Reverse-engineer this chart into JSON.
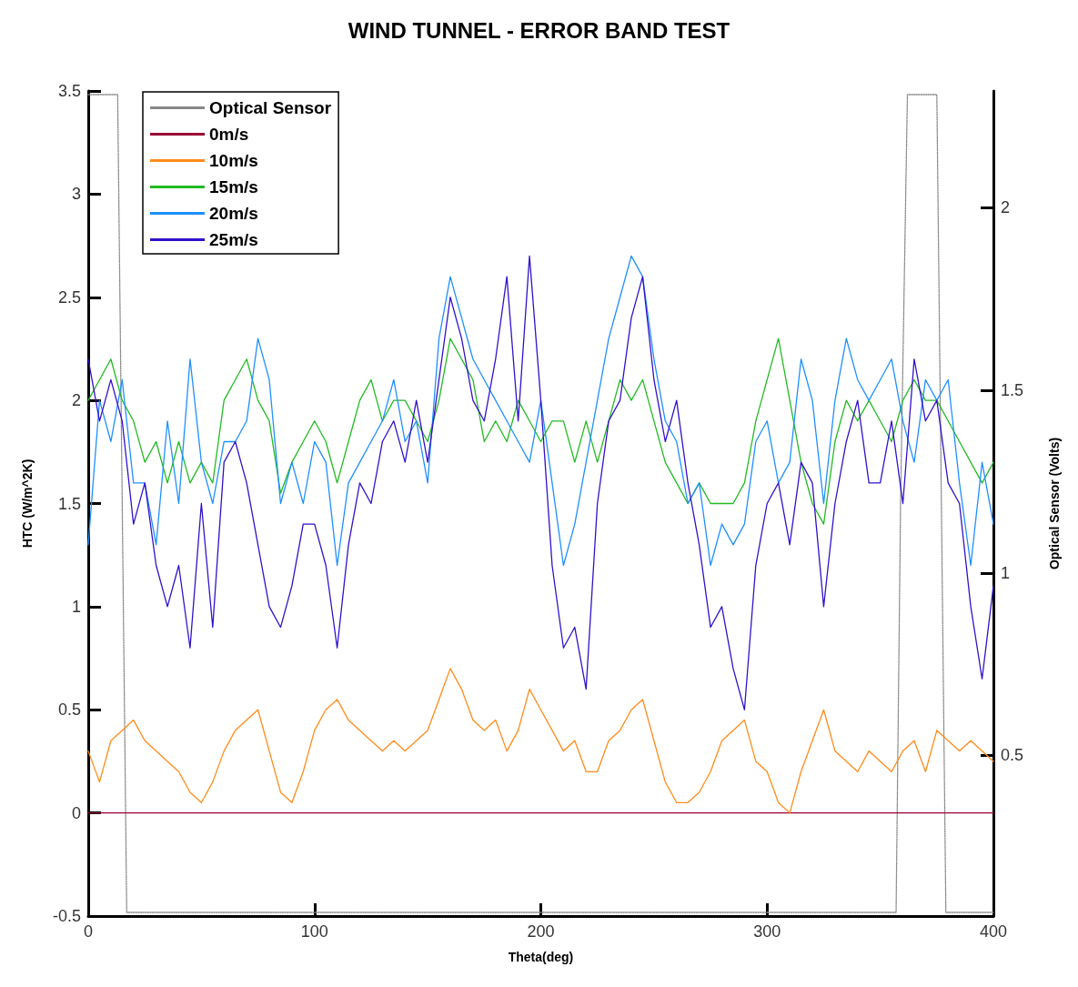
{
  "chart_data": {
    "type": "line",
    "title": "WIND TUNNEL - ERROR BAND TEST",
    "xlabel": "Theta(deg)",
    "ylabel": "HTC (W/m^2K)",
    "y2label": "Optical Sensor (Volts)",
    "xlim": [
      0,
      400
    ],
    "xticks": [
      0,
      100,
      200,
      300,
      400
    ],
    "ylim": [
      -0.5,
      3.5
    ],
    "yticks": [
      -0.5,
      0,
      0.5,
      1,
      1.5,
      2,
      2.5,
      3,
      3.5
    ],
    "y2lim": [
      0.06,
      2.32
    ],
    "y2ticks": [
      0.5,
      1,
      1.5,
      2
    ],
    "grid": false,
    "legend": "top left",
    "marker": "none",
    "line_style": "solid",
    "x": [
      0,
      5,
      10,
      15,
      20,
      25,
      30,
      35,
      40,
      45,
      50,
      55,
      60,
      65,
      70,
      75,
      80,
      85,
      90,
      95,
      100,
      105,
      110,
      115,
      120,
      125,
      130,
      135,
      140,
      145,
      150,
      155,
      160,
      165,
      170,
      175,
      180,
      185,
      190,
      195,
      200,
      205,
      210,
      215,
      220,
      225,
      230,
      235,
      240,
      245,
      250,
      255,
      260,
      265,
      270,
      275,
      280,
      285,
      290,
      295,
      300,
      305,
      310,
      315,
      320,
      325,
      330,
      335,
      340,
      345,
      350,
      355,
      360,
      365,
      370,
      375,
      380,
      385,
      390,
      395,
      400
    ],
    "series": [
      {
        "name": "Optical Sensor",
        "color": "#888888",
        "axis": "y2",
        "line_style": "dotted",
        "x": [
          0,
          13,
          15,
          17,
          357,
          359,
          362,
          375,
          377,
          379,
          400
        ],
        "values": [
          2.31,
          2.31,
          1.2,
          0.07,
          0.07,
          1.2,
          2.31,
          2.31,
          1.2,
          0.07,
          0.07
        ]
      },
      {
        "name": "0m/s",
        "color": "#990033",
        "x": [
          0,
          400
        ],
        "values": [
          0,
          0
        ]
      },
      {
        "name": "10m/s",
        "color": "#ff8c1a",
        "values": [
          0.3,
          0.15,
          0.35,
          0.4,
          0.45,
          0.35,
          0.3,
          0.25,
          0.2,
          0.1,
          0.05,
          0.15,
          0.3,
          0.4,
          0.45,
          0.5,
          0.3,
          0.1,
          0.05,
          0.2,
          0.4,
          0.5,
          0.55,
          0.45,
          0.4,
          0.35,
          0.3,
          0.35,
          0.3,
          0.35,
          0.4,
          0.55,
          0.7,
          0.6,
          0.45,
          0.4,
          0.45,
          0.3,
          0.4,
          0.6,
          0.5,
          0.4,
          0.3,
          0.35,
          0.2,
          0.2,
          0.35,
          0.4,
          0.5,
          0.55,
          0.35,
          0.15,
          0.05,
          0.05,
          0.1,
          0.2,
          0.35,
          0.4,
          0.45,
          0.25,
          0.2,
          0.05,
          0.0,
          0.2,
          0.35,
          0.5,
          0.3,
          0.25,
          0.2,
          0.3,
          0.25,
          0.2,
          0.3,
          0.35,
          0.2,
          0.4,
          0.35,
          0.3,
          0.35,
          0.3,
          0.25
        ]
      },
      {
        "name": "15m/s",
        "color": "#22bb22",
        "values": [
          2.0,
          2.1,
          2.2,
          2.0,
          1.9,
          1.7,
          1.8,
          1.6,
          1.8,
          1.6,
          1.7,
          1.6,
          2.0,
          2.1,
          2.2,
          2.0,
          1.9,
          1.55,
          1.7,
          1.8,
          1.9,
          1.8,
          1.6,
          1.8,
          2.0,
          2.1,
          1.9,
          2.0,
          2.0,
          1.9,
          1.8,
          2.0,
          2.3,
          2.2,
          2.1,
          1.8,
          1.9,
          1.8,
          2.0,
          1.9,
          1.8,
          1.9,
          1.9,
          1.7,
          1.9,
          1.7,
          1.9,
          2.1,
          2.0,
          2.1,
          1.9,
          1.7,
          1.6,
          1.5,
          1.6,
          1.5,
          1.5,
          1.5,
          1.6,
          1.9,
          2.1,
          2.3,
          2.0,
          1.7,
          1.5,
          1.4,
          1.8,
          2.0,
          1.9,
          2.0,
          1.9,
          1.8,
          2.0,
          2.1,
          2.0,
          2.0,
          1.9,
          1.8,
          1.7,
          1.6,
          1.7
        ]
      },
      {
        "name": "20m/s",
        "color": "#1e90ff",
        "values": [
          1.3,
          2.0,
          1.8,
          2.1,
          1.6,
          1.6,
          1.3,
          1.9,
          1.5,
          2.2,
          1.7,
          1.5,
          1.8,
          1.8,
          1.9,
          2.3,
          2.1,
          1.5,
          1.7,
          1.5,
          1.8,
          1.7,
          1.2,
          1.6,
          1.7,
          1.8,
          1.9,
          2.1,
          1.8,
          1.9,
          1.6,
          2.3,
          2.6,
          2.4,
          2.2,
          2.1,
          2.0,
          1.9,
          1.8,
          1.7,
          2.0,
          1.6,
          1.2,
          1.4,
          1.7,
          2.0,
          2.3,
          2.5,
          2.7,
          2.6,
          2.2,
          1.9,
          1.8,
          1.5,
          1.6,
          1.2,
          1.4,
          1.3,
          1.4,
          1.8,
          1.9,
          1.6,
          1.7,
          2.2,
          2.0,
          1.5,
          2.0,
          2.3,
          2.1,
          2.0,
          2.1,
          2.2,
          1.9,
          1.7,
          2.1,
          2.0,
          2.1,
          1.6,
          1.2,
          1.7,
          1.4
        ]
      },
      {
        "name": "25m/s",
        "color": "#3311cc",
        "values": [
          2.2,
          1.9,
          2.1,
          1.9,
          1.4,
          1.6,
          1.2,
          1.0,
          1.2,
          0.8,
          1.5,
          0.9,
          1.7,
          1.8,
          1.6,
          1.3,
          1.0,
          0.9,
          1.1,
          1.4,
          1.4,
          1.2,
          0.8,
          1.3,
          1.6,
          1.5,
          1.8,
          1.9,
          1.7,
          2.0,
          1.7,
          2.1,
          2.5,
          2.3,
          2.0,
          1.9,
          2.2,
          2.6,
          1.9,
          2.7,
          2.0,
          1.2,
          0.8,
          0.9,
          0.6,
          1.5,
          1.9,
          2.0,
          2.4,
          2.6,
          2.1,
          1.8,
          2.0,
          1.6,
          1.3,
          0.9,
          1.0,
          0.7,
          0.5,
          1.2,
          1.5,
          1.6,
          1.3,
          1.7,
          1.6,
          1.0,
          1.5,
          1.8,
          2.0,
          1.6,
          1.6,
          1.9,
          1.5,
          2.2,
          1.9,
          2.0,
          1.6,
          1.5,
          1.0,
          0.65,
          1.1
        ]
      }
    ]
  }
}
